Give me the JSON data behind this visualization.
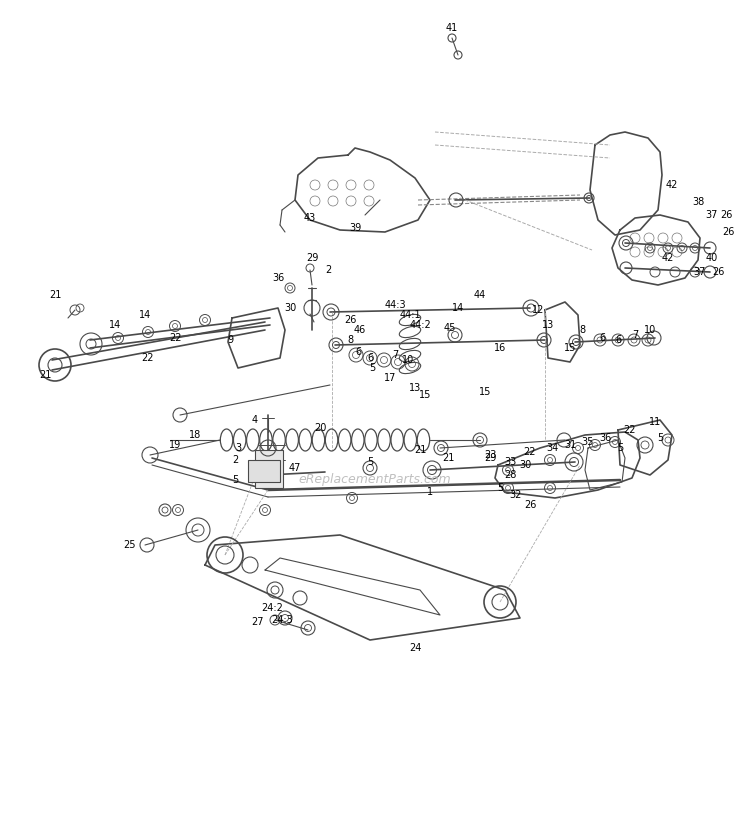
{
  "bg_color": "#ffffff",
  "watermark": "eReplacementParts.com",
  "lc": "#4a4a4a",
  "lc_light": "#888888",
  "lc_dash": "#666666",
  "fig_width": 7.5,
  "fig_height": 8.16,
  "dpi": 100
}
